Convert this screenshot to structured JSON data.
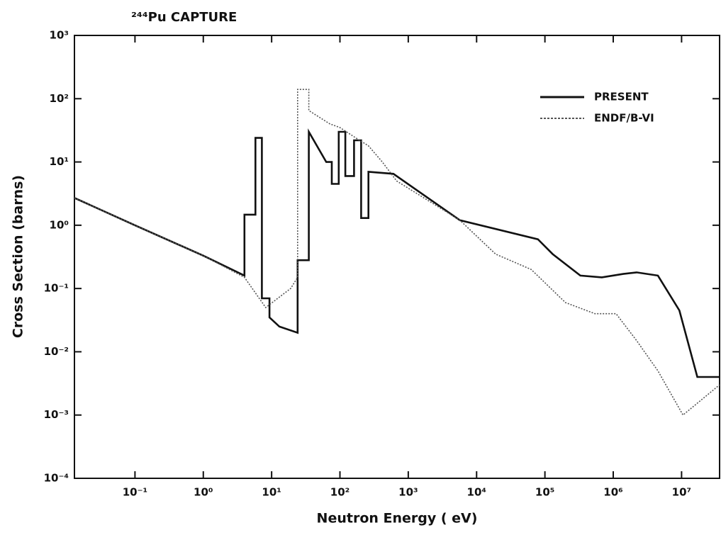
{
  "chart_data": {
    "type": "line",
    "title": "²⁴⁴Pu CAPTURE",
    "xlabel": "Neutron Energy ( eV)",
    "ylabel": "Cross Section (barns)",
    "xscale": "log",
    "yscale": "log",
    "xlim": [
      0.013,
      36000000
    ],
    "ylim": [
      0.0001,
      1000
    ],
    "xticks": [
      {
        "value": 0.1,
        "label": "10⁻¹"
      },
      {
        "value": 1,
        "label": "10⁰"
      },
      {
        "value": 10,
        "label": "10¹"
      },
      {
        "value": 100,
        "label": "10²"
      },
      {
        "value": 1000,
        "label": "10³"
      },
      {
        "value": 10000,
        "label": "10⁴"
      },
      {
        "value": 100000,
        "label": "10⁵"
      },
      {
        "value": 1000000,
        "label": "10⁶"
      },
      {
        "value": 10000000,
        "label": "10⁷"
      }
    ],
    "yticks": [
      {
        "value": 0.0001,
        "label": "10⁻⁴"
      },
      {
        "value": 0.001,
        "label": "10⁻³"
      },
      {
        "value": 0.01,
        "label": "10⁻²"
      },
      {
        "value": 0.1,
        "label": "10⁻¹"
      },
      {
        "value": 1,
        "label": "10⁰"
      },
      {
        "value": 10,
        "label": "10¹"
      },
      {
        "value": 100,
        "label": "10²"
      },
      {
        "value": 1000,
        "label": "10³"
      }
    ],
    "legend": "upper right",
    "series": [
      {
        "name": "PRESENT",
        "color": "#111111",
        "style": "solid",
        "x": [
          0.013,
          0.1,
          1,
          4,
          4,
          5.8,
          5.8,
          7.2,
          7.2,
          9.3,
          9.3,
          13,
          24,
          24,
          35,
          35,
          63,
          76,
          76,
          96,
          96,
          120,
          120,
          161,
          161,
          204,
          204,
          261,
          261,
          606,
          5700,
          79000,
          130000,
          330000,
          680000,
          1400000,
          2200000,
          4500000,
          9300000,
          17000000,
          36000000
        ],
        "values": [
          2.7,
          1.0,
          0.33,
          0.16,
          1.47,
          1.47,
          24,
          24,
          0.07,
          0.07,
          0.035,
          0.025,
          0.02,
          0.28,
          0.28,
          30,
          10,
          10,
          4.5,
          4.5,
          30,
          30,
          6,
          6,
          22,
          22,
          1.3,
          1.3,
          7,
          6.5,
          1.2,
          0.6,
          0.35,
          0.16,
          0.15,
          0.17,
          0.18,
          0.16,
          0.045,
          0.004,
          0.004
        ]
      },
      {
        "name": "ENDF/B-VI",
        "color": "#555555",
        "style": "dotted",
        "x": [
          0.013,
          0.1,
          1,
          4,
          8.2,
          19,
          24,
          24,
          35,
          35,
          71,
          100,
          161,
          261,
          417,
          676,
          5700,
          19000,
          63000,
          200000,
          540000,
          1100000,
          2200000,
          4500000,
          10500000,
          36000000
        ],
        "values": [
          2.7,
          1.0,
          0.33,
          0.15,
          0.05,
          0.1,
          0.15,
          140,
          140,
          65,
          40,
          35,
          25,
          18,
          10,
          5,
          1.2,
          0.35,
          0.2,
          0.06,
          0.04,
          0.04,
          0.015,
          0.005,
          0.001,
          0.003
        ]
      }
    ]
  }
}
